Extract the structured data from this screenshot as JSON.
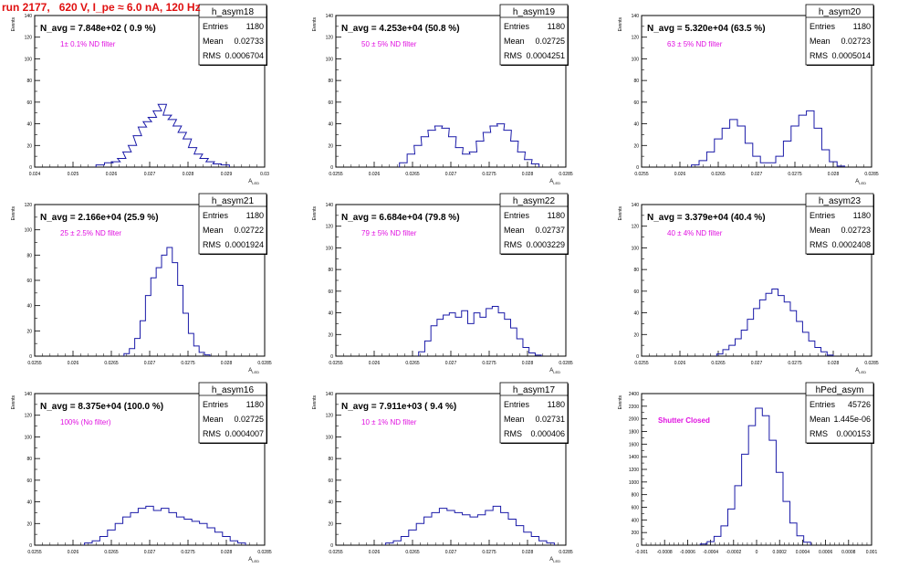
{
  "run_title": "run 2177,   620 V, I_pe ≈ 6.0 nA, 120 Hz",
  "chart_data": [
    {
      "type": "bar",
      "name": "h_asym18",
      "navg": "N_avg = 7.848e+02 ( 0.9 %)",
      "filter": "1± 0.1% ND filter",
      "entries": "1180",
      "mean": "0.02733",
      "rms": "0.0006704",
      "ylabel": "Events",
      "xlabel": "A_LED",
      "xlim": [
        0.024,
        0.03
      ],
      "ylim": [
        0,
        140
      ],
      "xticks": [
        "0.024",
        "0.025",
        "0.026",
        "0.027",
        "0.028",
        "0.029",
        "0.03"
      ],
      "yticks": [
        "0",
        "20",
        "40",
        "60",
        "80",
        "100",
        "120",
        "140"
      ],
      "x": [
        0.02571,
        0.02593,
        0.02612,
        0.02627,
        0.02641,
        0.02655,
        0.02668,
        0.02681,
        0.02694,
        0.02707,
        0.0272,
        0.02733,
        0.02746,
        0.02759,
        0.02772,
        0.02785,
        0.02798,
        0.02812,
        0.02827,
        0.02842,
        0.02858,
        0.02876,
        0.02897
      ],
      "values": [
        2,
        4,
        5,
        8,
        14,
        20,
        29,
        37,
        42,
        46,
        52,
        58,
        48,
        44,
        38,
        32,
        26,
        18,
        12,
        8,
        5,
        3,
        2
      ]
    },
    {
      "type": "bar",
      "name": "h_asym19",
      "navg": "N_avg = 4.253e+04 (50.8 %)",
      "filter": "50 ± 5% ND filter",
      "entries": "1180",
      "mean": "0.02725",
      "rms": "0.0004251",
      "ylabel": "Events",
      "xlabel": "A_LED",
      "xlim": [
        0.0255,
        0.0285
      ],
      "ylim": [
        0,
        140
      ],
      "xticks": [
        "0.0255",
        "0.026",
        "0.0265",
        "0.027",
        "0.0275",
        "0.028",
        "0.0285"
      ],
      "yticks": [
        "0",
        "20",
        "40",
        "60",
        "80",
        "100",
        "120",
        "140"
      ],
      "x": [
        0.02638,
        0.02648,
        0.02657,
        0.02666,
        0.02675,
        0.02684,
        0.02693,
        0.02702,
        0.02711,
        0.0272,
        0.02729,
        0.02738,
        0.02747,
        0.02756,
        0.02765,
        0.02774,
        0.02783,
        0.02792,
        0.02801,
        0.0281
      ],
      "values": [
        4,
        12,
        20,
        28,
        34,
        38,
        36,
        28,
        18,
        12,
        14,
        24,
        32,
        38,
        40,
        34,
        24,
        14,
        7,
        3
      ]
    },
    {
      "type": "bar",
      "name": "h_asym20",
      "navg": "N_avg = 5.320e+04 (63.5 %)",
      "filter": "63 ± 5% ND filter",
      "entries": "1180",
      "mean": "0.02723",
      "rms": "0.0005014",
      "ylabel": "Events",
      "xlabel": "A_LED",
      "xlim": [
        0.0255,
        0.0285
      ],
      "ylim": [
        0,
        140
      ],
      "xticks": [
        "0.0255",
        "0.026",
        "0.0265",
        "0.027",
        "0.0275",
        "0.028",
        "0.0285"
      ],
      "yticks": [
        "0",
        "20",
        "40",
        "60",
        "80",
        "100",
        "120",
        "140"
      ],
      "x": [
        0.0262,
        0.0263,
        0.0264,
        0.0265,
        0.0266,
        0.0267,
        0.0268,
        0.0269,
        0.027,
        0.0271,
        0.0272,
        0.0273,
        0.0274,
        0.0275,
        0.0276,
        0.0277,
        0.0278,
        0.0279,
        0.028,
        0.0281
      ],
      "values": [
        2,
        6,
        14,
        26,
        36,
        44,
        38,
        22,
        10,
        4,
        4,
        10,
        24,
        38,
        48,
        52,
        36,
        16,
        5,
        1
      ]
    },
    {
      "type": "bar",
      "name": "h_asym21",
      "navg": "N_avg = 2.166e+04 (25.9 %)",
      "filter": "25 ± 2.5% ND filter",
      "entries": "1180",
      "mean": "0.02722",
      "rms": "0.0001924",
      "ylabel": "Events",
      "xlabel": "A_LED",
      "xlim": [
        0.0255,
        0.0285
      ],
      "ylim": [
        0,
        120
      ],
      "xticks": [
        "0.0255",
        "0.026",
        "0.0265",
        "0.027",
        "0.0275",
        "0.028",
        "0.0285"
      ],
      "yticks": [
        "0",
        "20",
        "40",
        "60",
        "80",
        "100",
        "120"
      ],
      "x": [
        0.0267,
        0.02677,
        0.02684,
        0.02691,
        0.02698,
        0.02705,
        0.02712,
        0.02719,
        0.02726,
        0.02733,
        0.0274,
        0.02747,
        0.02754,
        0.02761,
        0.02768,
        0.02775
      ],
      "values": [
        2,
        6,
        14,
        28,
        48,
        62,
        70,
        80,
        86,
        74,
        56,
        34,
        18,
        8,
        3,
        1
      ]
    },
    {
      "type": "bar",
      "name": "h_asym22",
      "navg": "N_avg = 6.684e+04 (79.8 %)",
      "filter": "79 ± 5% ND filter",
      "entries": "1180",
      "mean": "0.02737",
      "rms": "0.0003229",
      "ylabel": "Events",
      "xlabel": "A_LED",
      "xlim": [
        0.0255,
        0.0285
      ],
      "ylim": [
        0,
        140
      ],
      "xticks": [
        "0.0255",
        "0.026",
        "0.0265",
        "0.027",
        "0.0275",
        "0.028",
        "0.0285"
      ],
      "yticks": [
        "0",
        "20",
        "40",
        "60",
        "80",
        "100",
        "120",
        "140"
      ],
      "x": [
        0.02662,
        0.0267,
        0.02678,
        0.02686,
        0.02694,
        0.02702,
        0.0271,
        0.02718,
        0.02726,
        0.02734,
        0.02742,
        0.0275,
        0.02758,
        0.02766,
        0.02774,
        0.02782,
        0.0279,
        0.02798,
        0.02806,
        0.02814
      ],
      "values": [
        4,
        14,
        28,
        34,
        38,
        40,
        36,
        42,
        30,
        40,
        36,
        44,
        46,
        40,
        34,
        26,
        16,
        8,
        3,
        1
      ]
    },
    {
      "type": "bar",
      "name": "h_asym23",
      "navg": "N_avg = 3.379e+04 (40.4 %)",
      "filter": "40 ± 4% ND filter",
      "entries": "1180",
      "mean": "0.02723",
      "rms": "0.0002408",
      "ylabel": "Events",
      "xlabel": "A_LED",
      "xlim": [
        0.0255,
        0.0285
      ],
      "ylim": [
        0,
        140
      ],
      "xticks": [
        "0.0255",
        "0.026",
        "0.0265",
        "0.027",
        "0.0275",
        "0.028",
        "0.0285"
      ],
      "yticks": [
        "0",
        "20",
        "40",
        "60",
        "80",
        "100",
        "120",
        "140"
      ],
      "x": [
        0.02652,
        0.0266,
        0.02668,
        0.02676,
        0.02684,
        0.02692,
        0.027,
        0.02708,
        0.02716,
        0.02724,
        0.02732,
        0.0274,
        0.02748,
        0.02756,
        0.02764,
        0.02772,
        0.0278,
        0.02788,
        0.02796
      ],
      "values": [
        2,
        6,
        10,
        16,
        24,
        34,
        44,
        52,
        58,
        62,
        56,
        50,
        42,
        32,
        22,
        14,
        8,
        4,
        1
      ]
    },
    {
      "type": "bar",
      "name": "h_asym16",
      "navg": "N_avg = 8.375e+04 (100.0 %)",
      "filter": "100% (No filter)",
      "entries": "1180",
      "mean": "0.02725",
      "rms": "0.0004007",
      "ylabel": "Events",
      "xlabel": "A_LED",
      "xlim": [
        0.0255,
        0.0285
      ],
      "ylim": [
        0,
        140
      ],
      "xticks": [
        "0.0255",
        "0.026",
        "0.0265",
        "0.027",
        "0.0275",
        "0.028",
        "0.0285"
      ],
      "yticks": [
        "0",
        "20",
        "40",
        "60",
        "80",
        "100",
        "120",
        "140"
      ],
      "x": [
        0.0262,
        0.0263,
        0.0264,
        0.0265,
        0.0266,
        0.0267,
        0.0268,
        0.0269,
        0.027,
        0.0271,
        0.0272,
        0.0273,
        0.0274,
        0.0275,
        0.0276,
        0.0277,
        0.0278,
        0.0279,
        0.028,
        0.0281,
        0.0282
      ],
      "values": [
        2,
        4,
        8,
        14,
        20,
        26,
        30,
        34,
        36,
        32,
        34,
        30,
        26,
        24,
        22,
        20,
        16,
        12,
        8,
        4,
        2
      ]
    },
    {
      "type": "bar",
      "name": "h_asym17",
      "navg": "N_avg = 7.911e+03 ( 9.4 %)",
      "filter": "10 ± 1% ND filter",
      "entries": "1180",
      "mean": "0.02731",
      "rms": "0.000406",
      "ylabel": "Events",
      "xlabel": "A_LED",
      "xlim": [
        0.0255,
        0.0285
      ],
      "ylim": [
        0,
        140
      ],
      "xticks": [
        "0.0255",
        "0.026",
        "0.0265",
        "0.027",
        "0.0275",
        "0.028",
        "0.0285"
      ],
      "yticks": [
        "0",
        "20",
        "40",
        "60",
        "80",
        "100",
        "120",
        "140"
      ],
      "x": [
        0.0262,
        0.0263,
        0.0264,
        0.0265,
        0.0266,
        0.0267,
        0.0268,
        0.0269,
        0.027,
        0.0271,
        0.0272,
        0.0273,
        0.0274,
        0.0275,
        0.0276,
        0.0277,
        0.0278,
        0.0279,
        0.028,
        0.0281,
        0.0282,
        0.0283
      ],
      "values": [
        2,
        4,
        8,
        14,
        20,
        26,
        30,
        34,
        32,
        30,
        28,
        26,
        28,
        32,
        36,
        30,
        24,
        18,
        12,
        8,
        4,
        2
      ]
    },
    {
      "type": "bar",
      "name": "hPed_asym",
      "navg": "",
      "filter": "Shutter Closed",
      "entries": "45726",
      "mean": "1.445e-06",
      "rms": "0.000153",
      "ylabel": "Events",
      "xlabel": "",
      "xlim": [
        -0.001,
        0.001
      ],
      "ylim": [
        0,
        2600
      ],
      "xticks": [
        "-0.001",
        "-0.0008",
        "-0.0006",
        "-0.0004",
        "-0.0002",
        "0",
        "0.0002",
        "0.0004",
        "0.0006",
        "0.0008",
        "0.001"
      ],
      "yticks": [
        "0",
        "200",
        "400",
        "600",
        "800",
        "1000",
        "1200",
        "1400",
        "1600",
        "1800",
        "2000",
        "2200",
        "2400"
      ],
      "x": [
        -0.00046,
        -0.0004,
        -0.00034,
        -0.00028,
        -0.00022,
        -0.00016,
        -0.0001,
        -4e-05,
        2e-05,
        8e-05,
        0.00014,
        0.0002,
        0.00026,
        0.00032,
        0.00038,
        0.00044
      ],
      "values": [
        20,
        60,
        150,
        330,
        620,
        1020,
        1560,
        2050,
        2350,
        2220,
        1800,
        1250,
        750,
        380,
        160,
        50
      ]
    }
  ]
}
